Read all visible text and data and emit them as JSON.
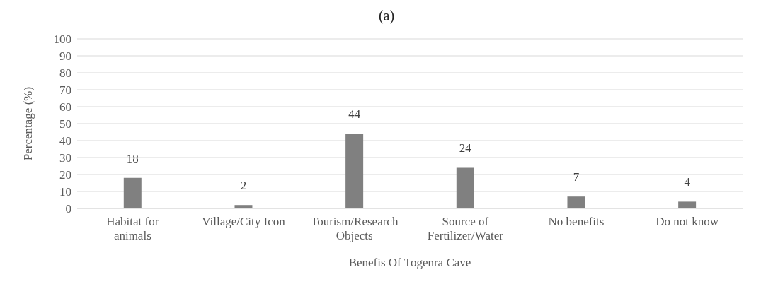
{
  "chart_data": {
    "type": "bar",
    "title": "(a)",
    "xlabel": "Benefis Of Togenra Cave",
    "ylabel": "Percentage (%)",
    "categories": [
      "Habitat for animals",
      "Village/City Icon",
      "Tourism/Research Objects",
      "Source of Fertilizer/Water",
      "No benefits",
      "Do not know"
    ],
    "values": [
      18,
      2,
      44,
      24,
      7,
      4
    ],
    "color": "#808080",
    "ylim": [
      0,
      100
    ],
    "yticks": [
      0,
      10,
      20,
      30,
      40,
      50,
      60,
      70,
      80,
      90,
      100
    ],
    "grid": "y",
    "data_labels": true
  }
}
